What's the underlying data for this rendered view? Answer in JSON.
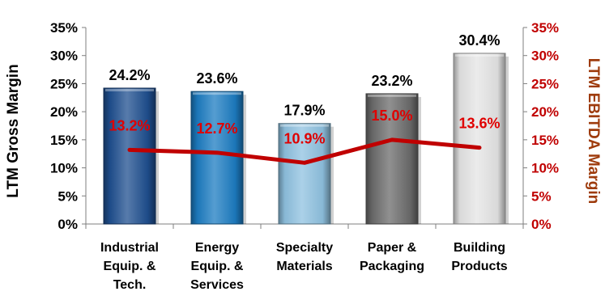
{
  "chart_data": {
    "type": "bar",
    "categories": [
      [
        "Industrial",
        "Equip. &",
        "Tech."
      ],
      [
        "Energy",
        "Equip. &",
        "Services"
      ],
      [
        "Specialty",
        "Materials"
      ],
      [
        "Paper &",
        "Packaging"
      ],
      [
        "Building",
        "Products"
      ]
    ],
    "series": [
      {
        "axis": "left",
        "chart_type": "bar",
        "values": [
          24.2,
          23.6,
          17.9,
          23.2,
          30.4
        ],
        "labels": [
          "24.2%",
          "23.6%",
          "17.9%",
          "23.2%",
          "30.4%"
        ],
        "colors": [
          "#1f4f8f",
          "#1c7cc2",
          "#8fc2e0",
          "#6b6b6b",
          "#e4e4e4"
        ]
      },
      {
        "axis": "right",
        "chart_type": "line",
        "values": [
          13.2,
          12.7,
          10.9,
          15.0,
          13.6
        ],
        "labels": [
          "13.2%",
          "12.7%",
          "10.9%",
          "15.0%",
          "13.6%"
        ],
        "color": "#c00000"
      }
    ],
    "ylabel": "LTM Gross Margin",
    "y2label": "LTM EBITDA Margin",
    "ylim": [
      0,
      35
    ],
    "y2lim": [
      0,
      35
    ],
    "yticks": [
      "0%",
      "5%",
      "10%",
      "15%",
      "20%",
      "25%",
      "30%",
      "35%"
    ],
    "y2ticks": [
      "0%",
      "5%",
      "10%",
      "15%",
      "20%",
      "25%",
      "30%",
      "35%"
    ],
    "colors": {
      "axis_left": "#000000",
      "axis_right": "#c00000",
      "y2label": "#9e3b0c",
      "line": "#c00000",
      "line_labels": "#e00000"
    },
    "grid": false,
    "legend": "none"
  }
}
